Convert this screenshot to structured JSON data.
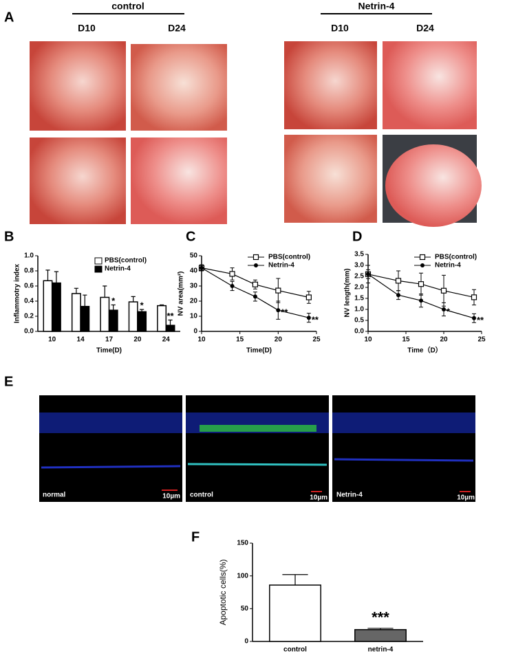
{
  "panels": {
    "A": {
      "label": "A",
      "groups": [
        {
          "title": "control",
          "days": [
            "D10",
            "D24"
          ]
        },
        {
          "title": "Netrin-4",
          "days": [
            "D10",
            "D24"
          ]
        }
      ]
    },
    "E": {
      "label": "E",
      "images": [
        {
          "caption": "normal",
          "scale": "10µm"
        },
        {
          "caption": "control",
          "scale": "10µm"
        },
        {
          "caption": "Netrin-4",
          "scale": "10µm"
        }
      ]
    }
  },
  "chart_data": [
    {
      "type": "bar",
      "label": "B",
      "ylabel": "Inflammotry index",
      "xlabel": "Time(D)",
      "categories": [
        "10",
        "14",
        "17",
        "20",
        "24"
      ],
      "ylim": [
        0,
        1
      ],
      "yticks": [
        {
          "value": 0,
          "label": "0.0"
        },
        0.2,
        0.4,
        0.6,
        0.8,
        {
          "value": 1,
          "label": "1.0"
        }
      ],
      "series": [
        {
          "name": "PBS(control)",
          "color": "#ffffff",
          "values": [
            0.67,
            0.5,
            0.45,
            0.39,
            0.34
          ],
          "errors": [
            0.14,
            0.07,
            0.15,
            0.07,
            0.01
          ],
          "annotations": [
            null,
            null,
            null,
            null,
            null
          ]
        },
        {
          "name": "Netrin-4",
          "color": "#000000",
          "values": [
            0.64,
            0.33,
            0.28,
            0.26,
            0.08
          ],
          "errors": [
            0.15,
            0.15,
            0.07,
            0.03,
            0.07
          ],
          "annotations": [
            null,
            null,
            "*",
            "*",
            "**"
          ]
        }
      ]
    },
    {
      "type": "line",
      "label": "C",
      "ylabel": "NV area(mm²)",
      "xlabel": "Time(D)",
      "x": [
        10,
        14,
        17,
        20,
        24
      ],
      "xlim": [
        10,
        25
      ],
      "xticks": [
        10,
        15,
        20,
        25
      ],
      "ylim": [
        0,
        50
      ],
      "yticks": [
        0,
        10,
        20,
        30,
        40,
        50
      ],
      "series": [
        {
          "name": "PBS(control)",
          "color": "#000000",
          "marker": "square",
          "values": [
            42,
            38,
            31,
            27,
            22.5
          ],
          "errors": [
            2,
            4,
            3,
            8,
            4
          ],
          "annotations": [
            null,
            null,
            null,
            null,
            null
          ]
        },
        {
          "name": "Netrin-4",
          "color": "#000000",
          "marker": "circle",
          "values": [
            42,
            30,
            23,
            14,
            9
          ],
          "errors": [
            2,
            3,
            3,
            6,
            3
          ],
          "annotations": [
            null,
            null,
            null,
            "**",
            "**"
          ]
        }
      ]
    },
    {
      "type": "line",
      "label": "D",
      "ylabel": "NV length(mm)",
      "xlabel": "Time（D）",
      "x": [
        10,
        14,
        17,
        20,
        24
      ],
      "xlim": [
        10,
        25
      ],
      "xticks": [
        10,
        15,
        20,
        25
      ],
      "ylim": [
        0,
        3.5
      ],
      "yticks": [
        {
          "value": 0,
          "label": "0.0"
        },
        0.5,
        {
          "value": 1,
          "label": "1.0"
        },
        1.5,
        {
          "value": 2,
          "label": "2.0"
        },
        2.5,
        {
          "value": 3,
          "label": "3.0"
        },
        3.5
      ],
      "series": [
        {
          "name": "PBS(control)",
          "color": "#000000",
          "marker": "square",
          "values": [
            2.6,
            2.3,
            2.15,
            1.85,
            1.55
          ],
          "errors": [
            0.2,
            0.45,
            0.5,
            0.7,
            0.35
          ],
          "annotations": [
            null,
            null,
            null,
            null,
            null
          ]
        },
        {
          "name": "Netrin-4",
          "color": "#000000",
          "marker": "circle",
          "values": [
            2.6,
            1.65,
            1.4,
            1.0,
            0.6
          ],
          "errors": [
            0.4,
            0.2,
            0.3,
            0.3,
            0.2
          ],
          "annotations": [
            null,
            null,
            null,
            "*",
            "**"
          ]
        }
      ]
    },
    {
      "type": "bar",
      "label": "F",
      "ylabel": "Apoptotic cells(%)",
      "categories": [
        "control",
        "netrin-4"
      ],
      "ylim": [
        0,
        150
      ],
      "yticks": [
        0,
        50,
        100,
        150
      ],
      "series": [
        {
          "color": [
            "#ffffff",
            "#666666"
          ],
          "values": [
            86,
            18
          ],
          "errors": [
            16,
            2
          ],
          "annotations": [
            null,
            "***"
          ]
        }
      ]
    }
  ]
}
